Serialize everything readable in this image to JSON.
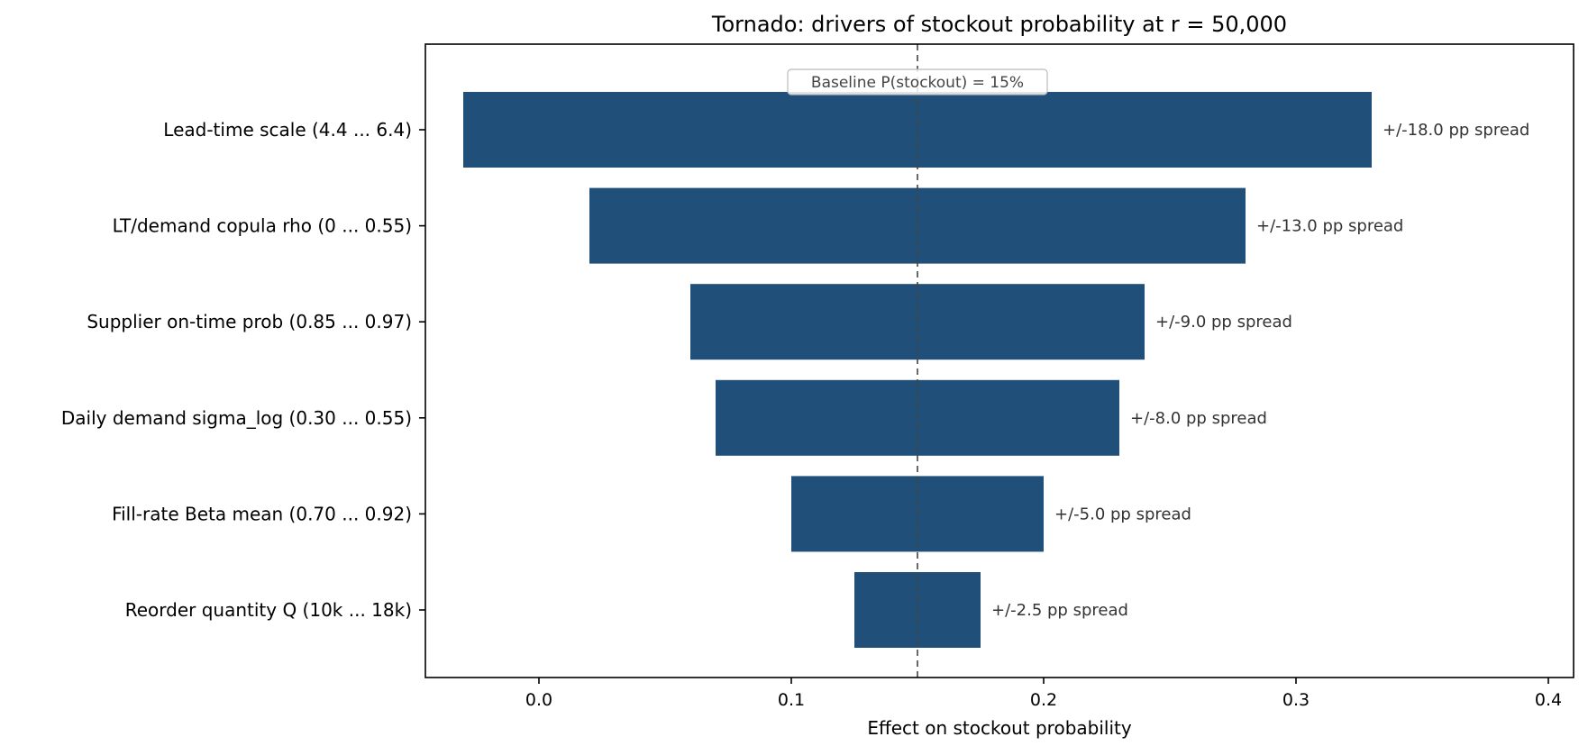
{
  "chart_data": {
    "type": "bar",
    "orientation": "horizontal",
    "title": "Tornado: drivers of stockout probability at r = 50,000",
    "xlabel": "Effect on stockout probability",
    "ylabel": "",
    "xlim": [
      -0.045,
      0.41
    ],
    "xticks": [
      0.0,
      0.1,
      0.2,
      0.3,
      0.4
    ],
    "xtick_labels": [
      "0.0",
      "0.1",
      "0.2",
      "0.3",
      "0.4"
    ],
    "grid": false,
    "bar_color": "#20507a",
    "baseline": 0.15,
    "baseline_label": "Baseline P(stockout) = 15%",
    "categories": [
      "Lead-time scale  (4.4 ... 6.4)",
      "LT/demand copula rho  (0 ... 0.55)",
      "Supplier on-time prob  (0.85 ... 0.97)",
      "Daily demand sigma_log  (0.30 ... 0.55)",
      "Fill-rate Beta mean  (0.70 ... 0.92)",
      "Reorder quantity Q  (10k ... 18k)"
    ],
    "low": [
      -0.03,
      0.02,
      0.06,
      0.07,
      0.1,
      0.125
    ],
    "high": [
      0.33,
      0.28,
      0.24,
      0.23,
      0.2,
      0.175
    ],
    "bar_labels": [
      "+/-18.0 pp spread",
      "+/-13.0 pp spread",
      "+/-9.0 pp spread",
      "+/-8.0 pp spread",
      "+/-5.0 pp spread",
      "+/-2.5 pp spread"
    ]
  }
}
